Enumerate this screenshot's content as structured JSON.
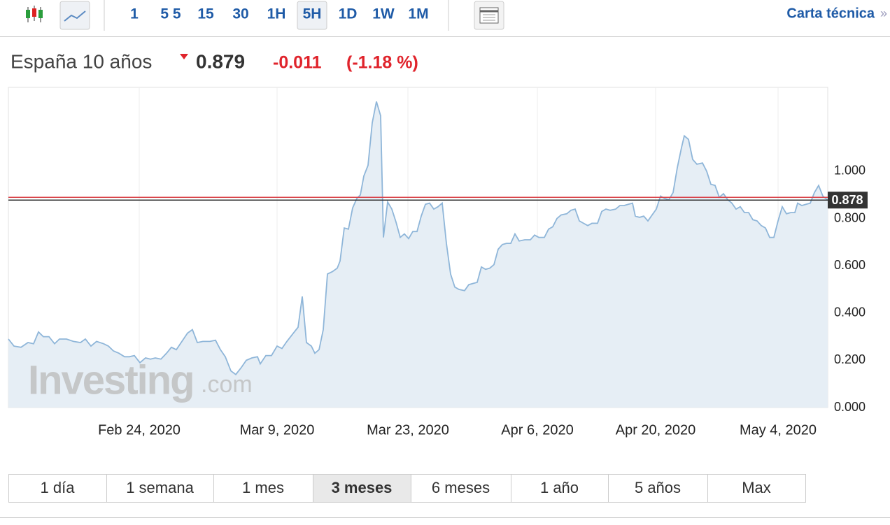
{
  "toolbar": {
    "intervals": [
      "1",
      "5 5",
      "15",
      "30",
      "1H",
      "5H",
      "1D",
      "1W",
      "1M"
    ],
    "selected": 5,
    "link": "Carta técnica",
    "link_arrow": "»"
  },
  "quote": {
    "name": "España 10 años",
    "price": "0.879",
    "change": "-0.011",
    "change_pct": "(-1.18 %)"
  },
  "watermark": [
    "Investing",
    ".com"
  ],
  "chart_data": {
    "type": "area",
    "color": "#8fb6d9",
    "fill": "#e6eef5",
    "grid": true,
    "last_value": 0.878,
    "xlim": [
      12,
      1183
    ],
    "ylim": [
      0,
      1.355
    ],
    "yticks": [
      {
        "value": 0,
        "label": "0.000"
      },
      {
        "value": 0.2,
        "label": "0.200"
      },
      {
        "value": 0.4,
        "label": "0.400"
      },
      {
        "value": 0.6,
        "label": "0.600"
      },
      {
        "value": 0.8,
        "label": "0.800"
      },
      {
        "value": 1,
        "label": "1.000"
      }
    ],
    "xticks": [
      {
        "value": 199,
        "label": "Feb 24, 2020"
      },
      {
        "value": 396,
        "label": "Mar 9, 2020"
      },
      {
        "value": 583,
        "label": "Mar 23, 2020"
      },
      {
        "value": 768,
        "label": "Apr 6, 2020"
      },
      {
        "value": 937,
        "label": "Apr 20, 2020"
      },
      {
        "value": 1112,
        "label": "May 4, 2020"
      }
    ],
    "x": [
      12,
      20,
      30,
      40,
      48,
      55,
      62,
      70,
      78,
      85,
      95,
      105,
      115,
      122,
      130,
      138,
      148,
      155,
      162,
      170,
      178,
      185,
      192,
      200,
      208,
      215,
      222,
      230,
      238,
      245,
      252,
      260,
      268,
      275,
      282,
      290,
      300,
      308,
      315,
      322,
      330,
      337,
      345,
      352,
      360,
      368,
      372,
      380,
      388,
      396,
      403,
      410,
      418,
      426,
      432,
      438,
      445,
      450,
      456,
      462,
      468,
      475,
      482,
      486,
      492,
      498,
      504,
      510,
      515,
      520,
      526,
      532,
      538,
      544,
      548,
      554,
      560,
      566,
      572,
      578,
      584,
      590,
      596,
      602,
      608,
      614,
      620,
      626,
      632,
      638,
      644,
      650,
      656,
      664,
      670,
      676,
      682,
      688,
      694,
      700,
      706,
      712,
      718,
      724,
      730,
      736,
      742,
      750,
      758,
      764,
      770,
      778,
      784,
      790,
      796,
      802,
      810,
      816,
      822,
      828,
      834,
      840,
      846,
      854,
      860,
      866,
      872,
      880,
      886,
      892,
      898,
      904,
      908,
      914,
      920,
      926,
      932,
      938,
      944,
      950,
      956,
      962,
      968,
      974,
      978,
      984,
      990,
      996,
      1004,
      1010,
      1016,
      1022,
      1028,
      1034,
      1040,
      1046,
      1052,
      1058,
      1064,
      1070,
      1076,
      1082,
      1088,
      1094,
      1100,
      1106,
      1112,
      1118,
      1124,
      1130,
      1136,
      1140,
      1146,
      1152,
      1158,
      1164,
      1170,
      1176,
      1183
    ],
    "values": [
      0.29,
      0.26,
      0.255,
      0.275,
      0.27,
      0.32,
      0.3,
      0.3,
      0.27,
      0.29,
      0.29,
      0.28,
      0.275,
      0.29,
      0.26,
      0.28,
      0.27,
      0.26,
      0.24,
      0.23,
      0.215,
      0.215,
      0.22,
      0.19,
      0.21,
      0.205,
      0.21,
      0.205,
      0.23,
      0.255,
      0.245,
      0.28,
      0.315,
      0.33,
      0.275,
      0.28,
      0.28,
      0.285,
      0.245,
      0.215,
      0.155,
      0.14,
      0.17,
      0.2,
      0.21,
      0.215,
      0.185,
      0.22,
      0.22,
      0.26,
      0.25,
      0.28,
      0.31,
      0.34,
      0.47,
      0.275,
      0.26,
      0.23,
      0.245,
      0.33,
      0.565,
      0.575,
      0.59,
      0.62,
      0.76,
      0.755,
      0.845,
      0.885,
      0.9,
      0.98,
      1.025,
      1.205,
      1.295,
      1.235,
      0.72,
      0.87,
      0.84,
      0.785,
      0.72,
      0.735,
      0.715,
      0.745,
      0.745,
      0.81,
      0.86,
      0.865,
      0.84,
      0.85,
      0.865,
      0.695,
      0.565,
      0.51,
      0.5,
      0.495,
      0.52,
      0.525,
      0.53,
      0.595,
      0.585,
      0.59,
      0.605,
      0.67,
      0.69,
      0.695,
      0.695,
      0.735,
      0.705,
      0.71,
      0.71,
      0.73,
      0.72,
      0.72,
      0.755,
      0.765,
      0.8,
      0.815,
      0.82,
      0.835,
      0.84,
      0.79,
      0.78,
      0.77,
      0.78,
      0.78,
      0.83,
      0.84,
      0.835,
      0.84,
      0.855,
      0.855,
      0.86,
      0.865,
      0.81,
      0.805,
      0.81,
      0.79,
      0.815,
      0.84,
      0.895,
      0.885,
      0.88,
      0.91,
      1.015,
      1.1,
      1.15,
      1.135,
      1.05,
      1.03,
      1.035,
      1,
      0.945,
      0.94,
      0.89,
      0.905,
      0.88,
      0.865,
      0.84,
      0.85,
      0.825,
      0.825,
      0.795,
      0.79,
      0.77,
      0.76,
      0.72,
      0.72,
      0.79,
      0.85,
      0.82,
      0.825,
      0.825,
      0.865,
      0.855,
      0.86,
      0.865,
      0.91,
      0.94,
      0.895,
      0.878
    ]
  },
  "ranges": {
    "items": [
      "1 día",
      "1 semana",
      "1 mes",
      "3 meses",
      "6 meses",
      "1 año",
      "5 años",
      "Max"
    ],
    "selected": 3
  }
}
